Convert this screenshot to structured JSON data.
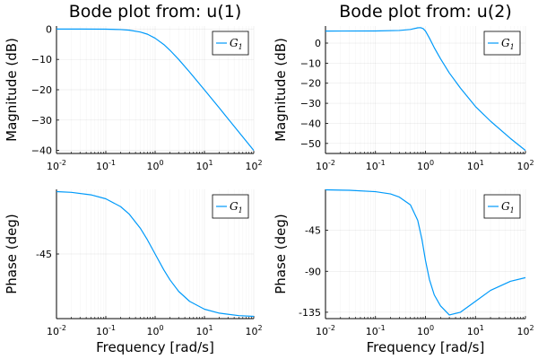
{
  "chart_data": [
    {
      "type": "line",
      "panel": "magnitude-u1",
      "title": "Bode plot from: u(1)",
      "xlabel": "",
      "ylabel": "Magnitude (dB)",
      "xscale": "log",
      "xlim": [
        0.01,
        100
      ],
      "ylim": [
        -41,
        1
      ],
      "xticks": [
        {
          "base": "10",
          "exp": "-2"
        },
        {
          "base": "10",
          "exp": "-1"
        },
        {
          "base": "10",
          "exp": "0"
        },
        {
          "base": "10",
          "exp": "1"
        },
        {
          "base": "10",
          "exp": "2"
        }
      ],
      "yticks": [
        {
          "value": 0,
          "label": "0"
        },
        {
          "value": -10,
          "label": "−10"
        },
        {
          "value": -20,
          "label": "−20"
        },
        {
          "value": -30,
          "label": "−30"
        },
        {
          "value": -40,
          "label": "−40"
        }
      ],
      "series": [
        {
          "name": "G",
          "subscript": "1",
          "color": "#009AFA",
          "x": [
            0.01,
            0.03,
            0.1,
            0.2,
            0.3,
            0.5,
            0.7,
            1,
            1.5,
            2,
            3,
            5,
            10,
            20,
            50,
            100
          ],
          "y": [
            0,
            0,
            -0.04,
            -0.17,
            -0.37,
            -0.97,
            -1.7,
            -3.01,
            -5.1,
            -6.99,
            -10.0,
            -14.15,
            -20.04,
            -26.0,
            -33.98,
            -40.0
          ]
        }
      ],
      "legend": "top-right"
    },
    {
      "type": "line",
      "panel": "magnitude-u2",
      "title": "Bode plot from: u(2)",
      "xlabel": "",
      "ylabel": "Magnitude (dB)",
      "xscale": "log",
      "xlim": [
        0.01,
        100
      ],
      "ylim": [
        -55,
        8.5
      ],
      "xticks": [
        {
          "base": "10",
          "exp": "-2"
        },
        {
          "base": "10",
          "exp": "-1"
        },
        {
          "base": "10",
          "exp": "0"
        },
        {
          "base": "10",
          "exp": "1"
        },
        {
          "base": "10",
          "exp": "2"
        }
      ],
      "yticks": [
        {
          "value": 0,
          "label": "0"
        },
        {
          "value": -10,
          "label": "−10"
        },
        {
          "value": -20,
          "label": "−20"
        },
        {
          "value": -30,
          "label": "−30"
        },
        {
          "value": -40,
          "label": "−40"
        },
        {
          "value": -50,
          "label": "−50"
        }
      ],
      "series": [
        {
          "name": "G",
          "subscript": "1",
          "color": "#009AFA",
          "x": [
            0.01,
            0.1,
            0.3,
            0.5,
            0.7,
            0.8,
            0.9,
            1.0,
            1.2,
            1.5,
            2,
            3,
            5,
            10,
            20,
            50,
            100
          ],
          "y": [
            6.0,
            6.05,
            6.3,
            6.8,
            7.6,
            7.7,
            7.2,
            6.0,
            2.5,
            -2.3,
            -7.8,
            -14.9,
            -22.4,
            -31.6,
            -38.9,
            -47.5,
            -53.5
          ]
        }
      ],
      "legend": "top-right"
    },
    {
      "type": "line",
      "panel": "phase-u1",
      "title": "",
      "xlabel": "Frequency [rad/s]",
      "ylabel": "Phase (deg)",
      "xscale": "log",
      "xlim": [
        0.01,
        100
      ],
      "ylim": [
        -91,
        1
      ],
      "xticks": [
        {
          "base": "10",
          "exp": "-2"
        },
        {
          "base": "10",
          "exp": "-1"
        },
        {
          "base": "10",
          "exp": "0"
        },
        {
          "base": "10",
          "exp": "1"
        },
        {
          "base": "10",
          "exp": "2"
        }
      ],
      "yticks": [
        {
          "value": -45,
          "label": "-45"
        }
      ],
      "series": [
        {
          "name": "G",
          "subscript": "1",
          "color": "#009AFA",
          "x": [
            0.01,
            0.02,
            0.05,
            0.1,
            0.2,
            0.3,
            0.5,
            0.7,
            1,
            1.5,
            2,
            3,
            5,
            10,
            20,
            50,
            100
          ],
          "y": [
            -0.6,
            -1.1,
            -2.9,
            -5.7,
            -11.3,
            -16.7,
            -26.6,
            -35.0,
            -45.0,
            -56.3,
            -63.4,
            -71.6,
            -78.7,
            -84.3,
            -87.1,
            -88.9,
            -89.4
          ]
        }
      ],
      "legend": "top-right"
    },
    {
      "type": "line",
      "panel": "phase-u2",
      "title": "",
      "xlabel": "Frequency [rad/s]",
      "ylabel": "Phase (deg)",
      "xscale": "log",
      "xlim": [
        0.01,
        100
      ],
      "ylim": [
        -142,
        0
      ],
      "xticks": [
        {
          "base": "10",
          "exp": "-2"
        },
        {
          "base": "10",
          "exp": "-1"
        },
        {
          "base": "10",
          "exp": "0"
        },
        {
          "base": "10",
          "exp": "1"
        },
        {
          "base": "10",
          "exp": "2"
        }
      ],
      "yticks": [
        {
          "value": -45,
          "label": "-45"
        },
        {
          "value": -90,
          "label": "-90"
        },
        {
          "value": -135,
          "label": "-135"
        }
      ],
      "series": [
        {
          "name": "G",
          "subscript": "1",
          "color": "#009AFA",
          "x": [
            0.01,
            0.03,
            0.1,
            0.2,
            0.3,
            0.5,
            0.7,
            0.85,
            1.0,
            1.2,
            1.5,
            2,
            3,
            5,
            10,
            20,
            50,
            100
          ],
          "y": [
            -0.5,
            -1.0,
            -2.5,
            -5.0,
            -8.5,
            -17.0,
            -34.0,
            -55.0,
            -78.0,
            -99.0,
            -116.0,
            -128.0,
            -138.0,
            -135.0,
            -123.0,
            -111.0,
            -101.0,
            -97.0
          ]
        }
      ],
      "legend": "top-right"
    }
  ]
}
